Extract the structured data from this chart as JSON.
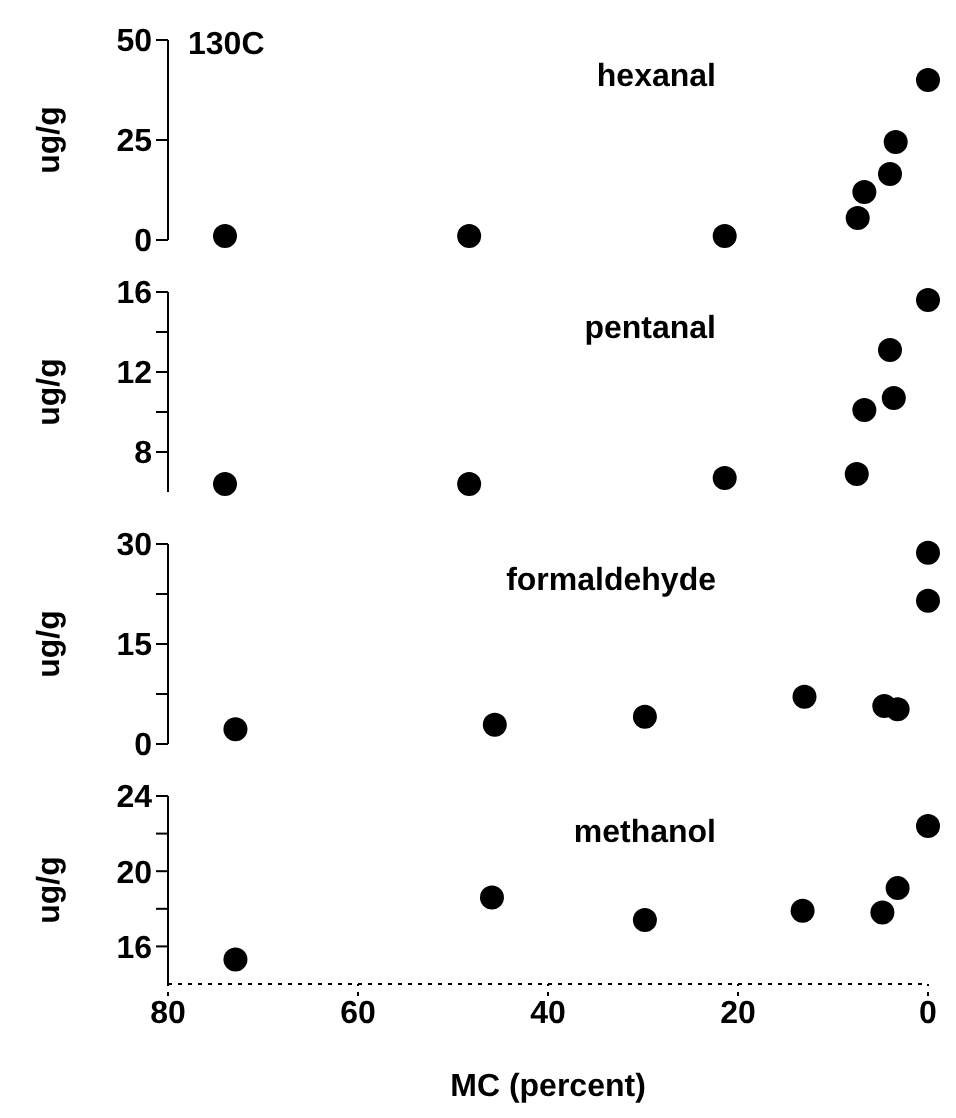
{
  "chart_data": [
    {
      "type": "scatter",
      "ylabel": "ug/g",
      "annotations": [
        "130C"
      ],
      "xlim": [
        80,
        0
      ],
      "ylim": [
        0,
        50
      ],
      "yticks": [
        0,
        25,
        50
      ],
      "tick_labels": "y",
      "marker": "circle",
      "grid": false,
      "legend": false,
      "series": [
        {
          "name": "hexanal",
          "color": "#000000",
          "x": [
            74,
            48.3,
            21.4,
            7.4,
            6.7,
            4,
            3.4,
            0
          ],
          "values": [
            1,
            1,
            1,
            5.5,
            12,
            16.5,
            24.5,
            40
          ]
        }
      ]
    },
    {
      "type": "scatter",
      "ylabel": "ug/g",
      "xlim": [
        80,
        0
      ],
      "ylim": [
        6,
        16
      ],
      "yticks": [
        {
          "value": 8,
          "label": "8"
        },
        {
          "value": 10,
          "label": null
        },
        {
          "value": 12,
          "label": "12"
        },
        {
          "value": 14,
          "label": null
        },
        {
          "value": 16,
          "label": "16"
        }
      ],
      "tick_labels": "y",
      "marker": "circle",
      "grid": false,
      "legend": false,
      "series": [
        {
          "name": "pentanal",
          "color": "#000000",
          "x": [
            74,
            48.3,
            21.4,
            7.5,
            6.7,
            4,
            3.6,
            0
          ],
          "values": [
            6.4,
            6.4,
            6.7,
            6.9,
            10.1,
            13.1,
            10.7,
            15.6
          ]
        }
      ]
    },
    {
      "type": "scatter",
      "ylabel": "ug/g",
      "xlim": [
        80,
        0
      ],
      "ylim": [
        0,
        30
      ],
      "yticks": [
        {
          "value": 0,
          "label": "0"
        },
        {
          "value": 7.5,
          "label": null
        },
        {
          "value": 15,
          "label": "15"
        },
        {
          "value": 22.5,
          "label": null
        },
        {
          "value": 30,
          "label": "30"
        }
      ],
      "tick_labels": "y",
      "marker": "circle",
      "grid": false,
      "legend": false,
      "series": [
        {
          "name": "formaldehyde",
          "color": "#000000",
          "x": [
            72.9,
            45.6,
            29.8,
            13,
            4.6,
            3.2,
            0,
            0
          ],
          "values": [
            2.2,
            2.9,
            4.1,
            7.1,
            5.7,
            5.2,
            21.5,
            28.7
          ]
        }
      ]
    },
    {
      "type": "scatter",
      "ylabel": "ug/g",
      "xlabel": "MC (percent)",
      "xlim": [
        80,
        0
      ],
      "xticks": [
        80,
        60,
        40,
        20,
        0
      ],
      "ylim": [
        14,
        24
      ],
      "yticks": [
        {
          "value": 16,
          "label": "16"
        },
        {
          "value": 18,
          "label": null
        },
        {
          "value": 20,
          "label": "20"
        },
        {
          "value": 22,
          "label": null
        },
        {
          "value": 24,
          "label": "24"
        }
      ],
      "marker": "circle",
      "grid": false,
      "legend": false,
      "series": [
        {
          "name": "methanol",
          "color": "#000000",
          "x": [
            72.9,
            45.9,
            29.8,
            13.2,
            4.8,
            3.2,
            0
          ],
          "values": [
            15.3,
            18.6,
            17.4,
            17.9,
            17.8,
            19.1,
            22.4
          ]
        }
      ]
    }
  ]
}
